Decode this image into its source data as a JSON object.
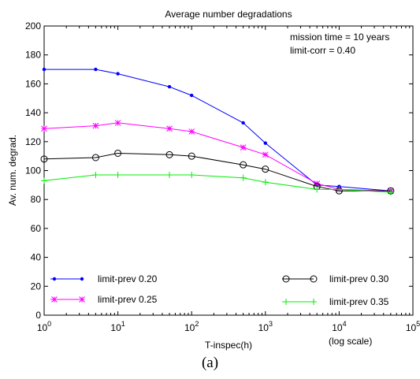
{
  "chart_data": {
    "type": "line",
    "title": "Average number degradations",
    "xlabel": "T-inspec(h)",
    "ylabel": "Av. num. degrad.",
    "xscale": "log",
    "xlim": [
      1,
      100000
    ],
    "ylim": [
      0,
      200
    ],
    "yticks": [
      0,
      20,
      40,
      60,
      80,
      100,
      120,
      140,
      160,
      180,
      200
    ],
    "xticks": [
      {
        "base": "10",
        "exp": "0"
      },
      {
        "base": "10",
        "exp": "1"
      },
      {
        "base": "10",
        "exp": "2"
      },
      {
        "base": "10",
        "exp": "3"
      },
      {
        "base": "10",
        "exp": "4"
      },
      {
        "base": "10",
        "exp": "5"
      }
    ],
    "x_axis_note": "(log scale)",
    "grid": false,
    "annotations": [
      "mission time = 10 years",
      "limit-corr = 0.40"
    ],
    "series": [
      {
        "name": "limit-prev 0.20",
        "color": "#0000ff",
        "marker": "dot",
        "x": [
          1,
          5,
          10,
          50,
          100,
          500,
          1000,
          5000,
          10000,
          50000
        ],
        "y": [
          170,
          170,
          167,
          158,
          152,
          133,
          119,
          90,
          89,
          86
        ]
      },
      {
        "name": "limit-prev 0.25",
        "color": "#ff00ff",
        "marker": "star",
        "x": [
          1,
          5,
          10,
          50,
          100,
          500,
          1000,
          5000,
          10000,
          50000
        ],
        "y": [
          129,
          131,
          133,
          129,
          127,
          116,
          111,
          91,
          87,
          86
        ]
      },
      {
        "name": "limit-prev 0.30",
        "color": "#000000",
        "marker": "circle",
        "x": [
          1,
          5,
          10,
          50,
          100,
          500,
          1000,
          5000,
          10000,
          50000
        ],
        "y": [
          108,
          109,
          112,
          111,
          110,
          104,
          101,
          89,
          86,
          86
        ]
      },
      {
        "name": "limit-prev 0.35",
        "color": "#00ee00",
        "marker": "plus",
        "x": [
          1,
          5,
          10,
          50,
          100,
          500,
          1000,
          5000,
          10000,
          50000
        ],
        "y": [
          93,
          97,
          97,
          97,
          97,
          95,
          92,
          87,
          87,
          85
        ]
      }
    ],
    "legend": [
      {
        "label": "limit-prev 0.20",
        "series": 0,
        "position": "bottom-left"
      },
      {
        "label": "limit-prev 0.25",
        "series": 1,
        "position": "bottom-left"
      },
      {
        "label": "limit-prev 0.30",
        "series": 2,
        "position": "bottom-right"
      },
      {
        "label": "limit-prev 0.35",
        "series": 3,
        "position": "bottom-right"
      }
    ]
  },
  "caption": "(a)"
}
